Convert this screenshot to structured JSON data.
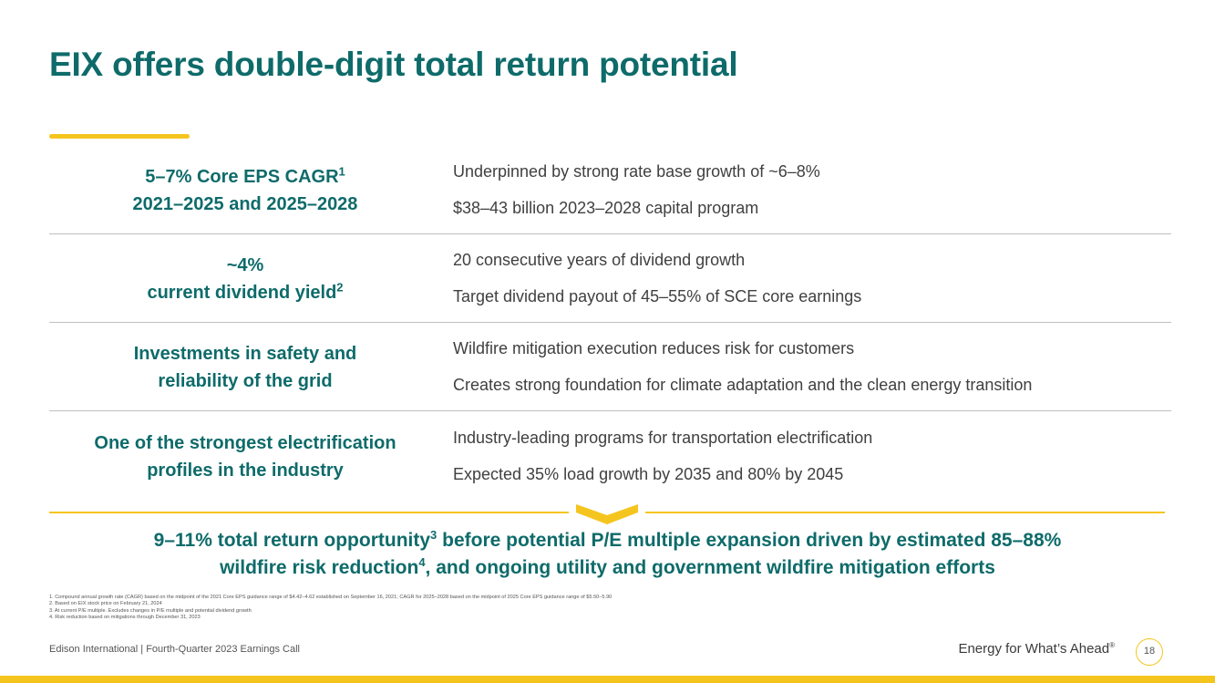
{
  "title": "EIX offers double-digit total return potential",
  "rows": [
    {
      "left_line1": "5–7% Core EPS CAGR",
      "left_line1_sup": "1",
      "left_line2": "2021–2025 and 2025–2028",
      "left_line2_sup": "",
      "right1": "Underpinned by strong rate base growth of ~6–8%",
      "right2": "$38–43 billion 2023–2028 capital program"
    },
    {
      "left_line1": "~4%",
      "left_line1_sup": "",
      "left_line2": "current dividend yield",
      "left_line2_sup": "2",
      "right1": "20 consecutive years of dividend growth",
      "right2": "Target dividend payout of 45–55% of SCE core earnings"
    },
    {
      "left_line1": "Investments in safety and",
      "left_line1_sup": "",
      "left_line2": "reliability of the grid",
      "left_line2_sup": "",
      "right1": "Wildfire mitigation execution reduces risk for customers",
      "right2": "Creates strong foundation for climate adaptation and the clean energy transition"
    },
    {
      "left_line1": "One of the strongest electrification",
      "left_line1_sup": "",
      "left_line2": "profiles in the industry",
      "left_line2_sup": "",
      "right1": "Industry-leading programs for transportation electrification",
      "right2": "Expected 35% load growth by 2035 and 80% by 2045"
    }
  ],
  "summary": {
    "part1": "9–11% total return opportunity",
    "sup1": "3",
    "part2": " before potential P/E multiple expansion driven by estimated 85–88%",
    "part3": "wildfire risk reduction",
    "sup2": "4",
    "part4": ", and ongoing utility and government wildfire mitigation efforts"
  },
  "footnotes": [
    "1.  Compound annual growth rate (CAGR) based on the midpoint of the 2021 Core EPS guidance range of $4.42–4.62 established on September 16, 2021; CAGR for 2025–2028 based on the midpoint of 2025 Core EPS guidance range of $5.50–5.90",
    "2.  Based on EIX stock price on February 21, 2024",
    "3.  At current P/E multiple. Excludes changes in P/E multiple and potential dividend growth",
    "4.  Risk reduction based on mitigations through December 31, 2023"
  ],
  "footer": {
    "left": "Edison International |  Fourth-Quarter 2023 Earnings Call",
    "tagline": "Energy for What’s Ahead",
    "tagline_mark": "®",
    "page_number": "18"
  },
  "colors": {
    "accent_teal": "#0e6b6a",
    "accent_yellow": "#f5c51f"
  }
}
